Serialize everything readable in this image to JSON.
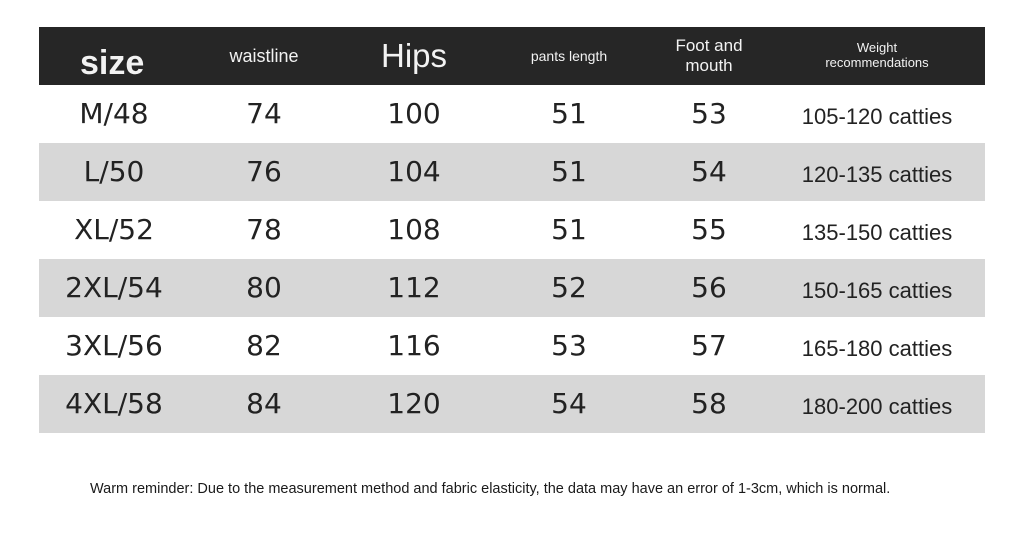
{
  "table": {
    "headers": {
      "size": "size",
      "waistline": "waistline",
      "hips": "Hips",
      "pants_length": "pants length",
      "foot_and_mouth_line1": "Foot and",
      "foot_and_mouth_line2": "mouth",
      "weight_line1": "Weight",
      "weight_line2": "recommendations"
    },
    "rows": [
      {
        "size": "M/48",
        "waistline": "74",
        "hips": "100",
        "pants_length": "51",
        "foot_and_mouth": "53",
        "weight": "105-120 catties"
      },
      {
        "size": "L/50",
        "waistline": "76",
        "hips": "104",
        "pants_length": "51",
        "foot_and_mouth": "54",
        "weight": "120-135 catties"
      },
      {
        "size": "XL/52",
        "waistline": "78",
        "hips": "108",
        "pants_length": "51",
        "foot_and_mouth": "55",
        "weight": "135-150 catties"
      },
      {
        "size": "2XL/54",
        "waistline": "80",
        "hips": "112",
        "pants_length": "52",
        "foot_and_mouth": "56",
        "weight": "150-165 catties"
      },
      {
        "size": "3XL/56",
        "waistline": "82",
        "hips": "116",
        "pants_length": "53",
        "foot_and_mouth": "57",
        "weight": "165-180 catties"
      },
      {
        "size": "4XL/58",
        "waistline": "84",
        "hips": "120",
        "pants_length": "54",
        "foot_and_mouth": "58",
        "weight": "180-200 catties"
      }
    ]
  },
  "footer": {
    "reminder": "Warm reminder: Due to the measurement method and fabric elasticity, the data may have an error of 1-3cm, which is normal."
  },
  "colors": {
    "header_background": "#262626",
    "shaded_row": "#d7d7d7",
    "plain_row": "#ffffff"
  }
}
